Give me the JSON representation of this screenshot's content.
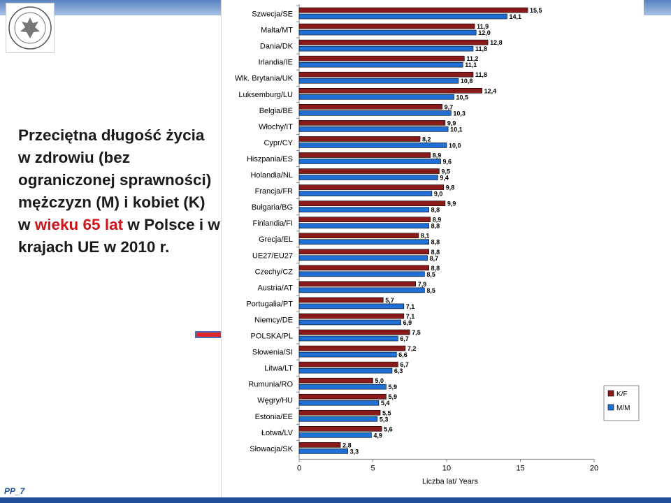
{
  "slide": {
    "title_part1": "Przeciętna długość życia w zdrowiu (bez ograniczonej sprawności) mężczyzn (M) i kobiet (K) w ",
    "title_highlight": "wieku 65 lat",
    "title_part2": " w Polsce i w krajach UE w 2010 r.",
    "footer_code": "PP_7",
    "logo_icon": "university-seal-icon",
    "arrow_icon": "arrow-right-icon",
    "colors": {
      "accent": "#1f4e9a",
      "highlight": "#d0141c",
      "arrow_fill": "#e0262b",
      "arrow_stroke": "#4a6fb5"
    }
  },
  "chart_data": {
    "type": "bar",
    "orientation": "horizontal",
    "categories": [
      "Szwecja/SE",
      "Malta/MT",
      "Dania/DK",
      "Irlandia/IE",
      "Wlk. Brytania/UK",
      "Luksemburg/LU",
      "Belgia/BE",
      "Włochy/IT",
      "Cypr/CY",
      "Hiszpania/ES",
      "Holandia/NL",
      "Francja/FR",
      "Bułgaria/BG",
      "Finlandia/FI",
      "Grecja/EL",
      "UE27/EU27",
      "Czechy/CZ",
      "Austria/AT",
      "Portugalia/PT",
      "Niemcy/DE",
      "POLSKA/PL",
      "Słowenia/SI",
      "Litwa/LT",
      "Rumunia/RO",
      "Węgry/HU",
      "Estonia/EE",
      "Łotwa/LV",
      "Słowacja/SK"
    ],
    "series": [
      {
        "name": "K/F",
        "color": "#8b1a1a",
        "values": [
          15.5,
          11.9,
          12.8,
          11.2,
          11.8,
          12.4,
          9.7,
          9.9,
          8.2,
          8.9,
          9.5,
          9.8,
          9.9,
          8.9,
          8.1,
          8.8,
          8.8,
          7.9,
          5.7,
          7.1,
          7.5,
          7.2,
          6.7,
          5.0,
          5.9,
          5.5,
          5.6,
          2.8
        ],
        "labels": [
          "15,5",
          "11,9",
          "12,8",
          "11,2",
          "11,8",
          "12,4",
          "9,7",
          "9,9",
          "8,2",
          "8,9",
          "9,5",
          "9,8",
          "9,9",
          "8,9",
          "8,1",
          "8,8",
          "8,8",
          "7,9",
          "5,7",
          "7,1",
          "7,5",
          "7,2",
          "6,7",
          "5,0",
          "5,9",
          "5,5",
          "5,6",
          "2,8"
        ]
      },
      {
        "name": "M/M",
        "color": "#1f6fd6",
        "values": [
          14.1,
          12.0,
          11.8,
          11.1,
          10.8,
          10.5,
          10.3,
          10.1,
          10.0,
          9.6,
          9.4,
          9.0,
          8.8,
          8.8,
          8.8,
          8.7,
          8.5,
          8.5,
          7.1,
          6.9,
          6.7,
          6.6,
          6.3,
          5.9,
          5.4,
          5.3,
          4.9,
          3.3
        ],
        "labels": [
          "14,1",
          "12,0",
          "11,8",
          "11,1",
          "10,8",
          "10,5",
          "10,3",
          "10,1",
          "10,0",
          "9,6",
          "9,4",
          "9,0",
          "8,8",
          "8,8",
          "8,8",
          "8,7",
          "8,5",
          "8,5",
          "7,1",
          "6,9",
          "6,7",
          "6,6",
          "6,3",
          "5,9",
          "5,4",
          "5,3",
          "4,9",
          "3,3"
        ]
      }
    ],
    "xlim": [
      0,
      20
    ],
    "xticks": [
      "0",
      "5",
      "10",
      "15",
      "20"
    ],
    "xlabel": "Liczba lat/ Years",
    "legend_position": "right",
    "grid": false
  }
}
